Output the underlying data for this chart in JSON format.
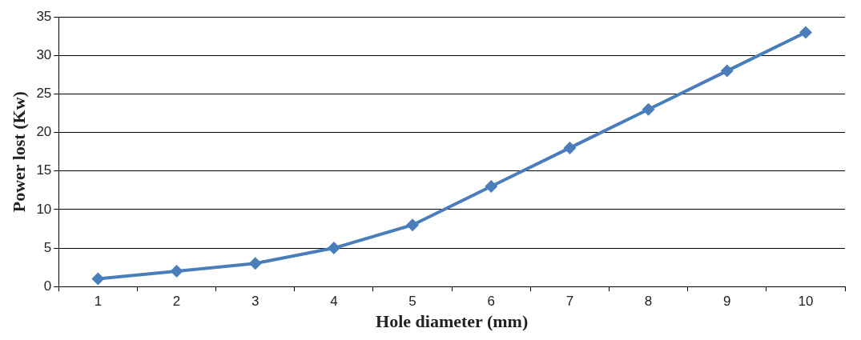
{
  "chart_data": {
    "type": "line",
    "xlabel": "Hole diameter (mm)",
    "ylabel": "Power lost (Kw)",
    "categories": [
      "1",
      "2",
      "3",
      "4",
      "5",
      "6",
      "7",
      "8",
      "9",
      "10"
    ],
    "series": [
      {
        "color": "#4a7ebb",
        "values": [
          1,
          2,
          3,
          5,
          8,
          13,
          18,
          23,
          28,
          33
        ]
      }
    ],
    "ylim": [
      0,
      35
    ],
    "yticks": [
      0,
      5,
      10,
      15,
      20,
      25,
      30,
      35
    ],
    "grid": "y",
    "marker": "diamond",
    "line_style": "solid",
    "legend": false
  }
}
